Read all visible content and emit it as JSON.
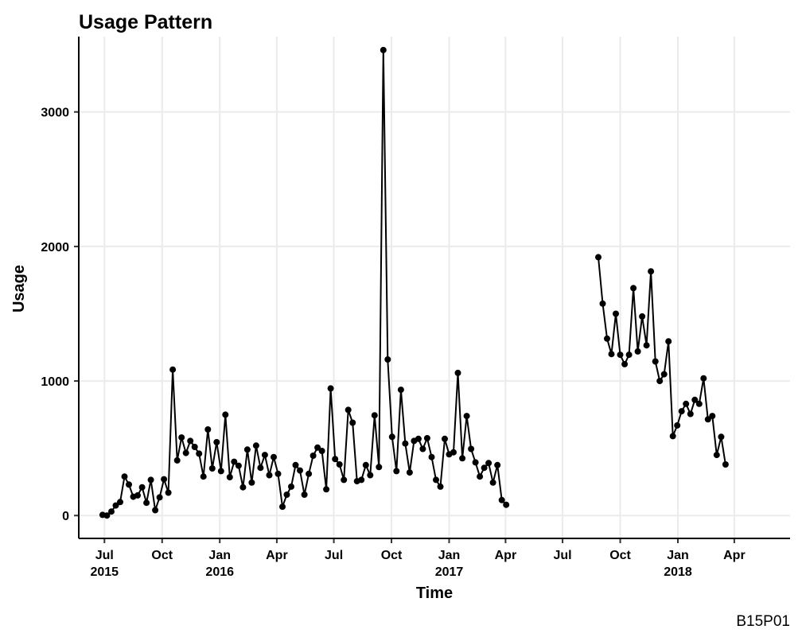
{
  "chart_data": {
    "type": "line",
    "title": "Usage Pattern",
    "xlabel": "Time",
    "ylabel": "Usage",
    "caption": "B15P01",
    "grid": true,
    "legend": "none",
    "ylim": [
      -170,
      3560
    ],
    "xlim": [
      "2015-05-21",
      "2018-06-29"
    ],
    "y_ticks": [
      0,
      1000,
      2000,
      3000
    ],
    "x_ticks": [
      {
        "date": "2015-07-01",
        "label": "Jul",
        "sub": "2015"
      },
      {
        "date": "2015-10-01",
        "label": "Oct",
        "sub": ""
      },
      {
        "date": "2016-01-01",
        "label": "Jan",
        "sub": "2016"
      },
      {
        "date": "2016-04-01",
        "label": "Apr",
        "sub": ""
      },
      {
        "date": "2016-07-01",
        "label": "Jul",
        "sub": ""
      },
      {
        "date": "2016-10-01",
        "label": "Oct",
        "sub": ""
      },
      {
        "date": "2017-01-01",
        "label": "Jan",
        "sub": "2017"
      },
      {
        "date": "2017-04-01",
        "label": "Apr",
        "sub": ""
      },
      {
        "date": "2017-07-01",
        "label": "Jul",
        "sub": ""
      },
      {
        "date": "2017-10-01",
        "label": "Oct",
        "sub": ""
      },
      {
        "date": "2018-01-01",
        "label": "Jan",
        "sub": "2018"
      },
      {
        "date": "2018-04-01",
        "label": "Apr",
        "sub": ""
      }
    ],
    "series": [
      {
        "segments": [
          [
            [
              "2015-06-28",
              5
            ],
            [
              "2015-07-05",
              0
            ],
            [
              "2015-07-12",
              30
            ],
            [
              "2015-07-19",
              75
            ],
            [
              "2015-07-26",
              100
            ],
            [
              "2015-08-02",
              290
            ],
            [
              "2015-08-09",
              230
            ],
            [
              "2015-08-16",
              140
            ],
            [
              "2015-08-23",
              150
            ],
            [
              "2015-08-30",
              210
            ],
            [
              "2015-09-06",
              95
            ],
            [
              "2015-09-13",
              265
            ],
            [
              "2015-09-20",
              40
            ],
            [
              "2015-09-27",
              135
            ],
            [
              "2015-10-04",
              270
            ],
            [
              "2015-10-11",
              170
            ],
            [
              "2015-10-18",
              1085
            ],
            [
              "2015-10-25",
              410
            ],
            [
              "2015-11-01",
              580
            ],
            [
              "2015-11-08",
              465
            ],
            [
              "2015-11-15",
              555
            ],
            [
              "2015-11-22",
              510
            ],
            [
              "2015-11-29",
              460
            ],
            [
              "2015-12-06",
              290
            ],
            [
              "2015-12-13",
              640
            ],
            [
              "2015-12-20",
              350
            ],
            [
              "2015-12-27",
              545
            ],
            [
              "2016-01-03",
              330
            ],
            [
              "2016-01-10",
              750
            ],
            [
              "2016-01-17",
              285
            ],
            [
              "2016-01-24",
              400
            ],
            [
              "2016-01-31",
              370
            ],
            [
              "2016-02-07",
              210
            ],
            [
              "2016-02-14",
              490
            ],
            [
              "2016-02-21",
              245
            ],
            [
              "2016-02-28",
              520
            ],
            [
              "2016-03-06",
              355
            ],
            [
              "2016-03-13",
              450
            ],
            [
              "2016-03-20",
              300
            ],
            [
              "2016-03-27",
              435
            ],
            [
              "2016-04-03",
              310
            ],
            [
              "2016-04-10",
              65
            ],
            [
              "2016-04-17",
              155
            ],
            [
              "2016-04-24",
              215
            ],
            [
              "2016-05-01",
              375
            ],
            [
              "2016-05-08",
              335
            ],
            [
              "2016-05-15",
              155
            ],
            [
              "2016-05-22",
              310
            ],
            [
              "2016-05-29",
              445
            ],
            [
              "2016-06-05",
              505
            ],
            [
              "2016-06-12",
              480
            ],
            [
              "2016-06-19",
              195
            ],
            [
              "2016-06-26",
              945
            ],
            [
              "2016-07-03",
              420
            ],
            [
              "2016-07-10",
              380
            ],
            [
              "2016-07-17",
              265
            ],
            [
              "2016-07-24",
              785
            ],
            [
              "2016-07-31",
              690
            ],
            [
              "2016-08-07",
              255
            ],
            [
              "2016-08-14",
              265
            ],
            [
              "2016-08-21",
              375
            ],
            [
              "2016-08-28",
              300
            ],
            [
              "2016-09-04",
              745
            ],
            [
              "2016-09-11",
              360
            ],
            [
              "2016-09-18",
              3460
            ],
            [
              "2016-09-25",
              1160
            ],
            [
              "2016-10-02",
              585
            ],
            [
              "2016-10-09",
              330
            ],
            [
              "2016-10-16",
              935
            ],
            [
              "2016-10-23",
              535
            ],
            [
              "2016-10-30",
              320
            ],
            [
              "2016-11-06",
              555
            ],
            [
              "2016-11-13",
              570
            ],
            [
              "2016-11-20",
              495
            ],
            [
              "2016-11-27",
              575
            ],
            [
              "2016-12-04",
              435
            ],
            [
              "2016-12-11",
              265
            ],
            [
              "2016-12-18",
              215
            ],
            [
              "2016-12-25",
              570
            ],
            [
              "2017-01-01",
              455
            ],
            [
              "2017-01-08",
              470
            ],
            [
              "2017-01-15",
              1060
            ],
            [
              "2017-01-22",
              425
            ],
            [
              "2017-01-29",
              740
            ],
            [
              "2017-02-05",
              495
            ],
            [
              "2017-02-12",
              395
            ],
            [
              "2017-02-19",
              290
            ],
            [
              "2017-02-26",
              355
            ],
            [
              "2017-03-05",
              390
            ],
            [
              "2017-03-12",
              245
            ],
            [
              "2017-03-19",
              375
            ],
            [
              "2017-03-26",
              115
            ],
            [
              "2017-04-02",
              80
            ]
          ],
          [
            [
              "2017-08-27",
              1920
            ],
            [
              "2017-09-03",
              1575
            ],
            [
              "2017-09-10",
              1315
            ],
            [
              "2017-09-17",
              1200
            ],
            [
              "2017-09-24",
              1500
            ],
            [
              "2017-10-01",
              1195
            ],
            [
              "2017-10-08",
              1125
            ],
            [
              "2017-10-15",
              1195
            ],
            [
              "2017-10-22",
              1690
            ],
            [
              "2017-10-29",
              1220
            ],
            [
              "2017-11-05",
              1480
            ],
            [
              "2017-11-12",
              1265
            ],
            [
              "2017-11-19",
              1815
            ],
            [
              "2017-11-26",
              1145
            ],
            [
              "2017-12-03",
              1000
            ],
            [
              "2017-12-10",
              1050
            ],
            [
              "2017-12-17",
              1295
            ],
            [
              "2017-12-24",
              590
            ],
            [
              "2017-12-31",
              670
            ],
            [
              "2018-01-07",
              775
            ],
            [
              "2018-01-14",
              830
            ],
            [
              "2018-01-21",
              755
            ],
            [
              "2018-01-28",
              860
            ],
            [
              "2018-02-04",
              830
            ],
            [
              "2018-02-11",
              1020
            ],
            [
              "2018-02-18",
              715
            ],
            [
              "2018-02-25",
              740
            ],
            [
              "2018-03-04",
              450
            ],
            [
              "2018-03-11",
              585
            ],
            [
              "2018-03-18",
              380
            ]
          ]
        ]
      }
    ]
  }
}
